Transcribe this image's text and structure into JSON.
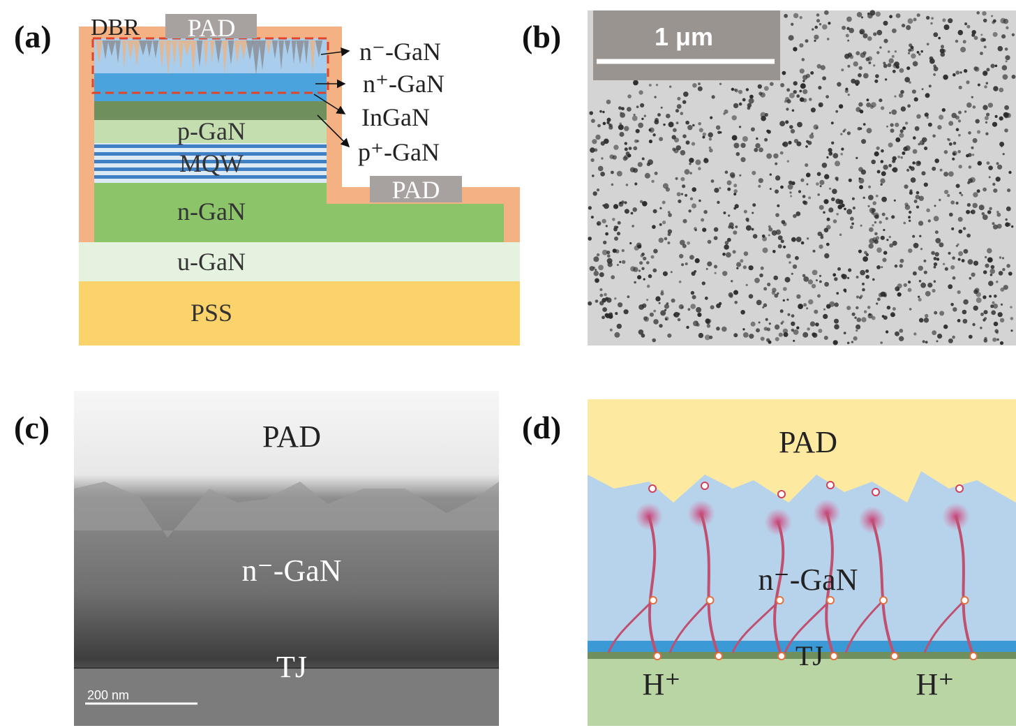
{
  "panel_a": {
    "label": "(a)",
    "layers": {
      "dbr": "DBR",
      "pad_top": "PAD",
      "pad_side": "PAD",
      "p_gan": "p-GaN",
      "mqw": "MQW",
      "n_gan": "n-GaN",
      "u_gan": "u-GaN",
      "pss": "PSS"
    },
    "callouts": [
      "n⁻-GaN",
      "n⁺-GaN",
      "InGaN",
      "p⁺-GaN"
    ]
  },
  "panel_b": {
    "label": "(b)",
    "scale_bar": "1 μm"
  },
  "panel_c": {
    "label": "(c)",
    "pad": "PAD",
    "layer": "n⁻-GaN",
    "junction": "TJ",
    "scale_bar": "200 nm"
  },
  "panel_d": {
    "label": "(d)",
    "pad": "PAD",
    "layer": "n⁻-GaN",
    "junction": "TJ",
    "ions": [
      "H⁺",
      "H⁺"
    ]
  }
}
